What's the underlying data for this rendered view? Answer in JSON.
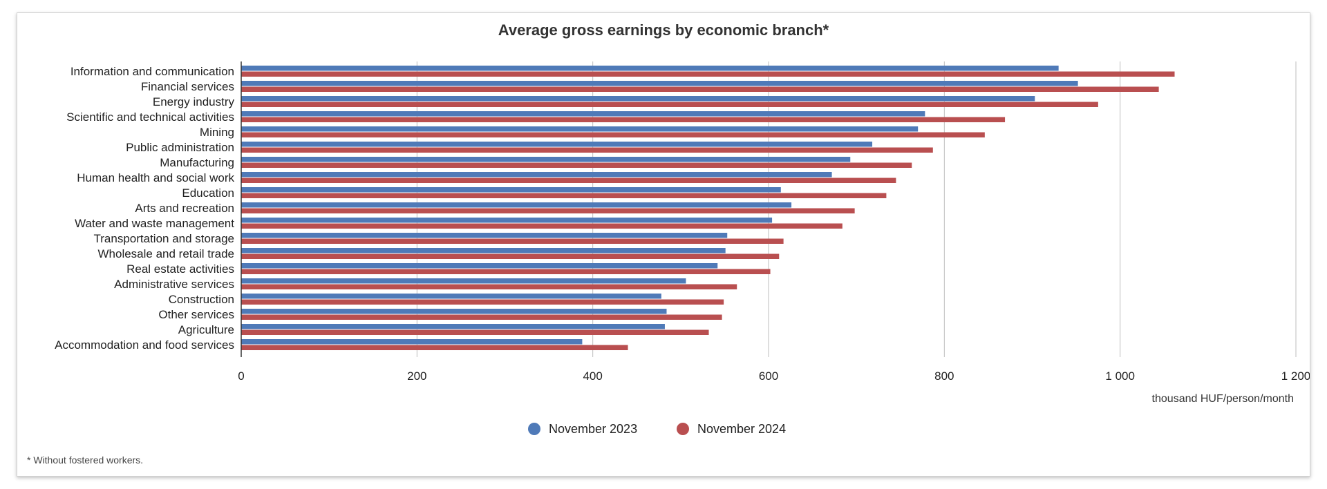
{
  "chart_data": {
    "type": "bar",
    "orientation": "horizontal",
    "title": "Average gross earnings by economic branch*",
    "xlabel": "thousand HUF/person/month",
    "ylabel": "",
    "xlim": [
      0,
      1200
    ],
    "x_ticks": [
      0,
      200,
      400,
      600,
      800,
      1000,
      1200
    ],
    "x_tick_labels": [
      "0",
      "200",
      "400",
      "600",
      "800",
      "1 000",
      "1 200"
    ],
    "grid": true,
    "legend_position": "bottom",
    "footnote": "* Without fostered workers.",
    "categories": [
      "Information and communication",
      "Financial services",
      "Energy industry",
      "Scientific and technical activities",
      "Mining",
      "Public administration",
      "Manufacturing",
      "Human health and social work",
      "Education",
      "Arts and recreation",
      "Water and waste management",
      "Transportation and storage",
      "Wholesale and retail trade",
      "Real estate activities",
      "Administrative services",
      "Construction",
      "Other services",
      "Agriculture",
      "Accommodation and food services"
    ],
    "series": [
      {
        "name": "November 2023",
        "color": "#4f7ab8",
        "values": [
          930,
          952,
          903,
          778,
          770,
          718,
          693,
          672,
          614,
          626,
          604,
          553,
          551,
          542,
          506,
          478,
          484,
          482,
          388
        ]
      },
      {
        "name": "November 2024",
        "color": "#b94f50",
        "values": [
          1062,
          1044,
          975,
          869,
          846,
          787,
          763,
          745,
          734,
          698,
          684,
          617,
          612,
          602,
          564,
          549,
          547,
          532,
          440
        ]
      }
    ]
  }
}
